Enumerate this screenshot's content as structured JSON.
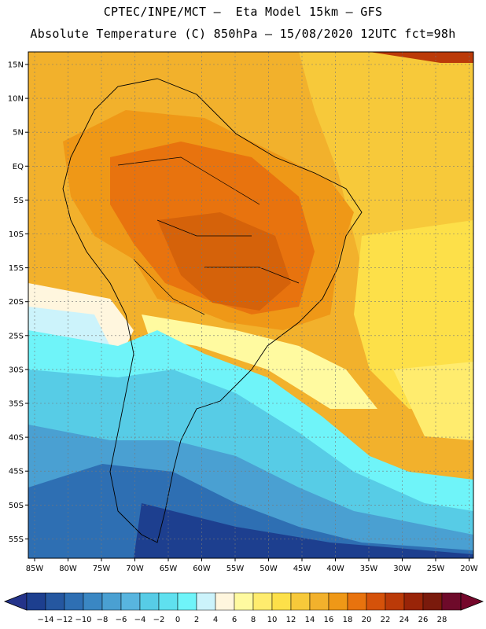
{
  "header": {
    "line1": "CPTEC/INPE/MCT –  Eta Model 15km – GFS",
    "line2": "Absolute Temperature (C) 850hPa – 15/08/2020 12UTC fct=98h"
  },
  "axes": {
    "lat_labels": [
      "15N",
      "10N",
      "5N",
      "EQ",
      "5S",
      "10S",
      "15S",
      "20S",
      "25S",
      "30S",
      "35S",
      "40S",
      "45S",
      "50S",
      "55S"
    ],
    "lon_labels": [
      "85W",
      "80W",
      "75W",
      "70W",
      "65W",
      "60W",
      "55W",
      "50W",
      "45W",
      "40W",
      "35W",
      "30W",
      "25W",
      "20W"
    ]
  },
  "colorbar": {
    "labels": [
      "-14",
      "-12",
      "-10",
      "-8",
      "-6",
      "-4",
      "-2",
      "0",
      "2",
      "4",
      "6",
      "8",
      "10",
      "12",
      "14",
      "16",
      "18",
      "20",
      "22",
      "24",
      "26",
      "28"
    ],
    "colors": [
      "#1d3f8f",
      "#2557a0",
      "#2e6fb3",
      "#3a87c3",
      "#4aa0d2",
      "#58b5df",
      "#57cce6",
      "#5fe0ef",
      "#6ff4f9",
      "#ccf3fb",
      "#fff6de",
      "#fffaa0",
      "#ffec6e",
      "#fde049",
      "#f7c93a",
      "#f2b12c",
      "#ef9817",
      "#e8730e",
      "#d5520a",
      "#bb3a08",
      "#992408",
      "#7a1a0c",
      "#6e0a2a"
    ],
    "low_end_color": "#24338a",
    "high_end_color": "#75072b"
  },
  "map_colors": {
    "ocean_n": "#f2b12c",
    "ocean_warm": "#f7c93a",
    "ocean_yellow": "#fde049",
    "land_hot": "#e8730e",
    "land_hotter": "#d5620a",
    "cold_blue": "#2e6fb3",
    "cold_dark": "#1d3f8f"
  }
}
